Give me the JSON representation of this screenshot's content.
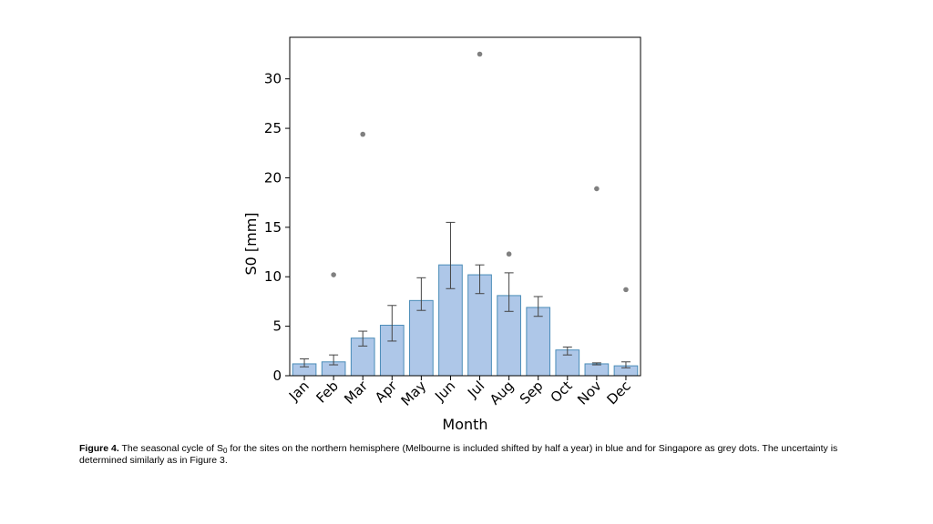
{
  "chart_data": {
    "type": "bar",
    "xlabel": "Month",
    "ylabel": "S0 [mm]",
    "ylim": [
      0,
      34.2
    ],
    "yticks": [
      0,
      5,
      10,
      15,
      20,
      25,
      30
    ],
    "grid": false,
    "bar_color": "#aec7e8",
    "bar_edge_color": "#4a8cb8",
    "errorbar_color": "#444444",
    "dot_color": "#808080",
    "categories": [
      "Jan",
      "Feb",
      "Mar",
      "Apr",
      "May",
      "Jun",
      "Jul",
      "Aug",
      "Sep",
      "Oct",
      "Nov",
      "Dec"
    ],
    "series": [
      {
        "name": "Northern hemisphere sites",
        "values": [
          1.2,
          1.4,
          3.8,
          5.1,
          7.6,
          11.2,
          10.2,
          8.1,
          6.9,
          2.6,
          1.2,
          1.0
        ],
        "err_low": [
          0.9,
          1.1,
          3.0,
          3.5,
          6.6,
          8.8,
          8.3,
          6.5,
          6.0,
          2.1,
          1.1,
          0.8
        ],
        "err_high": [
          1.7,
          2.1,
          4.5,
          7.1,
          9.9,
          15.5,
          11.2,
          10.4,
          8.0,
          2.9,
          1.3,
          1.4
        ]
      },
      {
        "name": "Singapore",
        "type": "scatter",
        "points": [
          {
            "month": "Feb",
            "value": 10.2
          },
          {
            "month": "Mar",
            "value": 24.4
          },
          {
            "month": "Jul",
            "value": 32.5
          },
          {
            "month": "Aug",
            "value": 12.3
          },
          {
            "month": "Nov",
            "value": 18.9
          },
          {
            "month": "Dec",
            "value": 8.7
          }
        ]
      }
    ]
  },
  "caption": {
    "label": "Figure 4.",
    "text_before_sub": " The seasonal cycle of S",
    "subscript": "0",
    "text_after_sub": " for the sites on the northern hemisphere (Melbourne is included shifted by half a year) in blue and for Singapore as grey dots. The uncertainty is determined similarly as in Figure 3."
  }
}
